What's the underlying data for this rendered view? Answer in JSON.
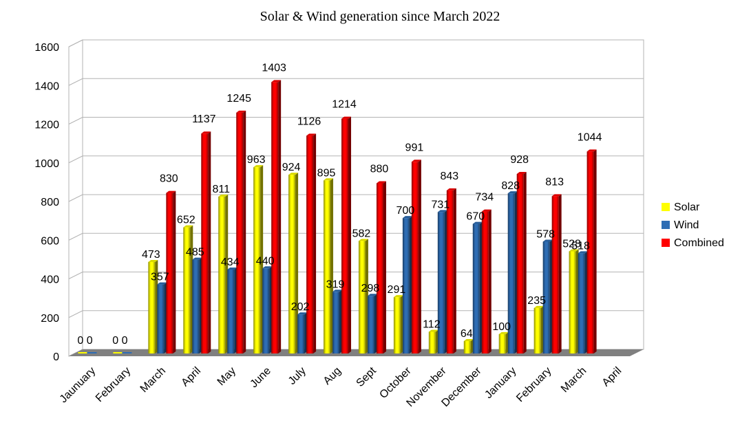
{
  "chart_data": {
    "type": "bar",
    "title": "Solar & Wind generation since March 2022",
    "xlabel": "",
    "ylabel": "",
    "ylim": [
      0,
      1600
    ],
    "yticks": [
      0,
      200,
      400,
      600,
      800,
      1000,
      1200,
      1400,
      1600
    ],
    "grid": true,
    "legend_position": "right",
    "categories": [
      "Jaunuary",
      "February",
      "March",
      "April",
      "May",
      "June",
      "July",
      "Aug",
      "Sept",
      "October",
      "November",
      "December",
      "January",
      "February",
      "March",
      "April"
    ],
    "series": [
      {
        "name": "Solar",
        "color": "#ffff00",
        "values": [
          0,
          0,
          473,
          652,
          811,
          963,
          924,
          895,
          582,
          291,
          112,
          64,
          100,
          235,
          528,
          null
        ]
      },
      {
        "name": "Wind",
        "color": "#2e6db4",
        "values": [
          0,
          0,
          357,
          485,
          434,
          440,
          202,
          319,
          298,
          700,
          731,
          670,
          828,
          578,
          518,
          null
        ]
      },
      {
        "name": "Combined",
        "color": "#ff0000",
        "values": [
          null,
          null,
          830,
          1137,
          1245,
          1403,
          1126,
          1214,
          880,
          991,
          843,
          734,
          928,
          813,
          1044,
          null
        ]
      }
    ]
  }
}
